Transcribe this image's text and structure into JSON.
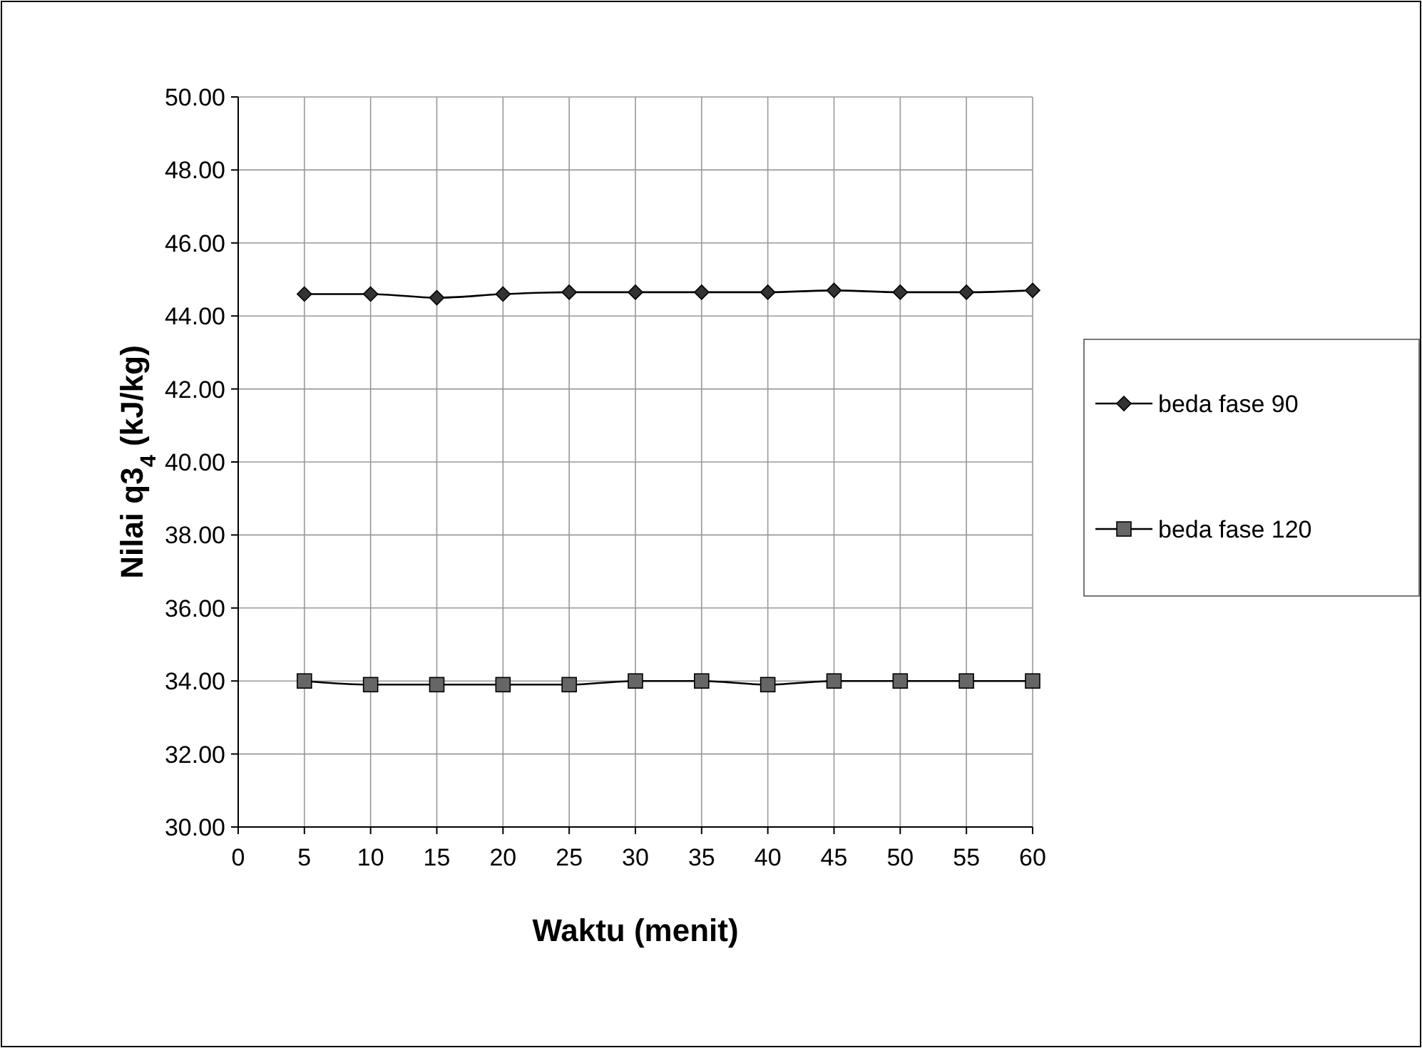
{
  "chart_data": {
    "type": "line",
    "xlabel": "Waktu (menit)",
    "ylabel": "Nilai q3$_{4}$ (kJ/kg)",
    "x": [
      5,
      10,
      15,
      20,
      25,
      30,
      35,
      40,
      45,
      50,
      55,
      60
    ],
    "series": [
      {
        "name": "beda fase 90",
        "color": "#333333",
        "marker": "diamond",
        "values": [
          44.6,
          44.6,
          44.5,
          44.6,
          44.65,
          44.65,
          44.65,
          44.65,
          44.7,
          44.65,
          44.65,
          44.7
        ]
      },
      {
        "name": "beda fase 120",
        "color": "#666666",
        "marker": "square",
        "values": [
          34.0,
          33.9,
          33.9,
          33.9,
          33.9,
          34.0,
          34.0,
          33.9,
          34.0,
          34.0,
          34.0,
          34.0
        ]
      }
    ],
    "xlim": [
      0,
      60
    ],
    "xticks": [
      0,
      5,
      10,
      15,
      20,
      25,
      30,
      35,
      40,
      45,
      50,
      55,
      60
    ],
    "ylim": [
      30,
      50
    ],
    "yticks": [
      {
        "value": 30,
        "label": "30.00"
      },
      {
        "value": 32,
        "label": "32.00"
      },
      {
        "value": 34,
        "label": "34.00"
      },
      {
        "value": 36,
        "label": "36.00"
      },
      {
        "value": 38,
        "label": "38.00"
      },
      {
        "value": 40,
        "label": "40.00"
      },
      {
        "value": 42,
        "label": "42.00"
      },
      {
        "value": 44,
        "label": "44.00"
      },
      {
        "value": 46,
        "label": "46.00"
      },
      {
        "value": 48,
        "label": "48.00"
      },
      {
        "value": 50,
        "label": "50.00"
      }
    ],
    "grid": true,
    "legend": "right",
    "line_style": "solid"
  }
}
